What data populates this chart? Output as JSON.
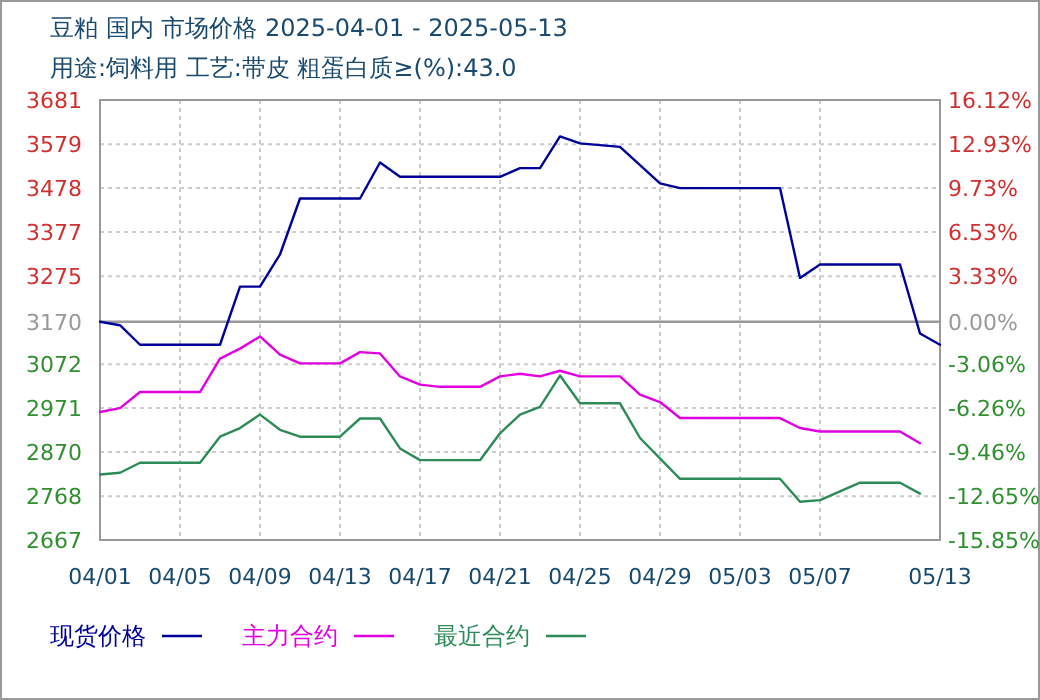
{
  "chart_data": {
    "type": "line",
    "title": "豆粕 国内 市场价格 2025-04-01 - 2025-05-13",
    "subtitle": "用途:饲料用 工艺:带皮 粗蛋白质≥(%):43.0",
    "xlim": [
      "2025-04-01",
      "2025-05-13"
    ],
    "xticks": [
      {
        "value": "2025-04-01",
        "label": "04/01"
      },
      {
        "value": "2025-04-05",
        "label": "04/05"
      },
      {
        "value": "2025-04-09",
        "label": "04/09"
      },
      {
        "value": "2025-04-13",
        "label": "04/13"
      },
      {
        "value": "2025-04-17",
        "label": "04/17"
      },
      {
        "value": "2025-04-21",
        "label": "04/21"
      },
      {
        "value": "2025-04-25",
        "label": "04/25"
      },
      {
        "value": "2025-04-29",
        "label": "04/29"
      },
      {
        "value": "2025-05-03",
        "label": "05/03"
      },
      {
        "value": "2025-05-07",
        "label": "05/07"
      },
      {
        "value": "2025-05-13",
        "label": "05/13"
      }
    ],
    "ylim": [
      2667,
      3681
    ],
    "yticks": [
      2667,
      2768,
      2870,
      2971,
      3072,
      3170,
      3275,
      3377,
      3478,
      3579,
      3681
    ],
    "y2lim": [
      -15.85,
      16.12
    ],
    "y2ticks": [
      {
        "value": -15.85,
        "label": "-15.85%"
      },
      {
        "value": -12.65,
        "label": "-12.65%"
      },
      {
        "value": -9.46,
        "label": "-9.46%"
      },
      {
        "value": -6.26,
        "label": "-6.26%"
      },
      {
        "value": -3.06,
        "label": "-3.06%"
      },
      {
        "value": 0,
        "label": "0.00%"
      },
      {
        "value": 3.33,
        "label": "3.33%"
      },
      {
        "value": 6.53,
        "label": "6.53%"
      },
      {
        "value": 9.73,
        "label": "9.73%"
      },
      {
        "value": 12.93,
        "label": "12.93%"
      },
      {
        "value": 16.12,
        "label": "16.12%"
      }
    ],
    "ref_lines": [
      {
        "axis": "y",
        "value": 3170,
        "color": "#999999"
      }
    ],
    "grid": true,
    "legend": "bottom",
    "series": [
      {
        "name": "现货价格",
        "color": "#000099",
        "x": [
          "2025-04-01",
          "2025-04-02",
          "2025-04-03",
          "2025-04-07",
          "2025-04-08",
          "2025-04-09",
          "2025-04-10",
          "2025-04-11",
          "2025-04-14",
          "2025-04-15",
          "2025-04-16",
          "2025-04-21",
          "2025-04-22",
          "2025-04-23",
          "2025-04-24",
          "2025-04-25",
          "2025-04-27",
          "2025-04-29",
          "2025-04-30",
          "2025-05-05",
          "2025-05-06",
          "2025-05-07",
          "2025-05-11",
          "2025-05-12",
          "2025-05-13"
        ],
        "values": [
          3170,
          3162,
          3117,
          3117,
          3251,
          3251,
          3325,
          3454,
          3454,
          3537,
          3504,
          3504,
          3524,
          3524,
          3597,
          3581,
          3573,
          3489,
          3478,
          3478,
          3271,
          3302,
          3302,
          3143,
          3117
        ]
      },
      {
        "name": "主力合约",
        "color": "#e000e0",
        "x": [
          "2025-04-01",
          "2025-04-02",
          "2025-04-03",
          "2025-04-06",
          "2025-04-07",
          "2025-04-08",
          "2025-04-09",
          "2025-04-10",
          "2025-04-11",
          "2025-04-13",
          "2025-04-14",
          "2025-04-15",
          "2025-04-16",
          "2025-04-17",
          "2025-04-18",
          "2025-04-20",
          "2025-04-21",
          "2025-04-22",
          "2025-04-23",
          "2025-04-24",
          "2025-04-25",
          "2025-04-27",
          "2025-04-28",
          "2025-04-29",
          "2025-04-30",
          "2025-05-05",
          "2025-05-06",
          "2025-05-07",
          "2025-05-11",
          "2025-05-12"
        ],
        "values": [
          2962,
          2971,
          3008,
          3008,
          3085,
          3108,
          3136,
          3094,
          3074,
          3074,
          3100,
          3097,
          3044,
          3025,
          3020,
          3020,
          3044,
          3050,
          3044,
          3057,
          3044,
          3044,
          3002,
          2985,
          2948,
          2948,
          2925,
          2917,
          2917,
          2890
        ]
      },
      {
        "name": "最近合约",
        "color": "#2e8b57",
        "x": [
          "2025-04-01",
          "2025-04-02",
          "2025-04-03",
          "2025-04-06",
          "2025-04-07",
          "2025-04-08",
          "2025-04-09",
          "2025-04-10",
          "2025-04-11",
          "2025-04-13",
          "2025-04-14",
          "2025-04-15",
          "2025-04-16",
          "2025-04-17",
          "2025-04-20",
          "2025-04-21",
          "2025-04-22",
          "2025-04-23",
          "2025-04-24",
          "2025-04-25",
          "2025-04-27",
          "2025-04-28",
          "2025-04-30",
          "2025-05-05",
          "2025-05-06",
          "2025-05-07",
          "2025-05-09",
          "2025-05-11",
          "2025-05-12"
        ],
        "values": [
          2818,
          2822,
          2845,
          2845,
          2905,
          2925,
          2956,
          2921,
          2905,
          2905,
          2947,
          2947,
          2878,
          2851,
          2851,
          2913,
          2956,
          2974,
          3046,
          2982,
          2982,
          2902,
          2808,
          2808,
          2755,
          2759,
          2799,
          2799,
          2774
        ]
      }
    ]
  }
}
